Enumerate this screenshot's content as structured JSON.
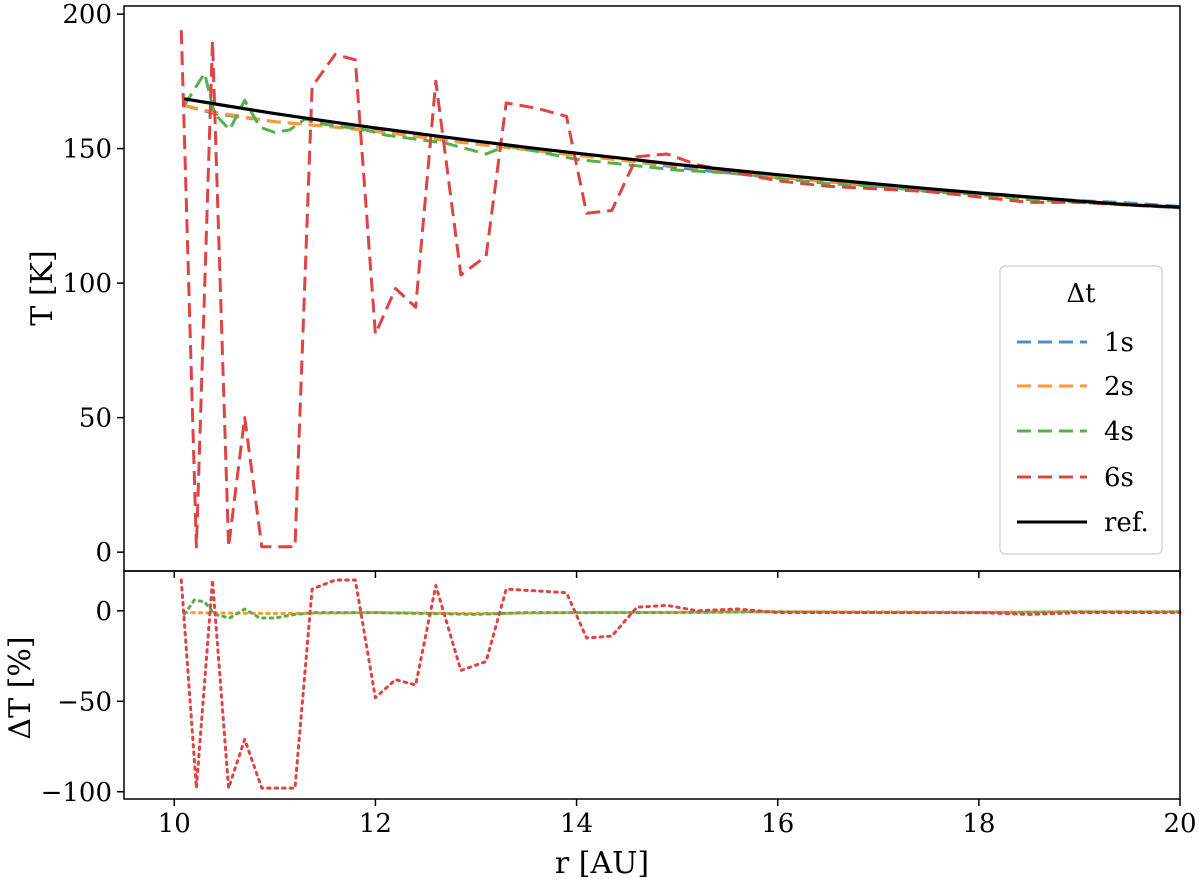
{
  "chart_data": [
    {
      "type": "line",
      "xlim": [
        9.5,
        20
      ],
      "ylim": [
        -7,
        203
      ],
      "xticks": [
        10,
        12,
        14,
        16,
        18,
        20
      ],
      "yticks": [
        0,
        50,
        100,
        150,
        200
      ],
      "xlabel": "",
      "ylabel": "T [K]",
      "grid": false,
      "legend": {
        "title": "Δt",
        "placement": "center-right",
        "entries": [
          "1s",
          "2s",
          "4s",
          "6s",
          "ref."
        ]
      },
      "series": [
        {
          "name": "1s",
          "color": "#4c8fcc",
          "style": "dashed",
          "x": [
            10.1,
            10.4,
            11.0,
            11.6,
            12.2,
            12.8,
            13.4,
            14.0,
            14.6,
            15.2,
            15.8,
            16.4,
            17.0,
            17.6,
            18.2,
            18.8,
            19.4,
            20.0
          ],
          "y": [
            166,
            163,
            160,
            158,
            156,
            153,
            150,
            148,
            145,
            142,
            140,
            138,
            136,
            134,
            133,
            131,
            130,
            128.5
          ]
        },
        {
          "name": "2s",
          "color": "#ff9933",
          "style": "dashed",
          "x": [
            10.1,
            10.4,
            11.0,
            11.6,
            12.2,
            12.8,
            13.4,
            14.0,
            14.6,
            15.2,
            15.8,
            16.4,
            17.0,
            17.6,
            18.2,
            18.8,
            19.4,
            20.0
          ],
          "y": [
            166,
            163.5,
            160,
            158,
            155.5,
            152.5,
            150,
            147.5,
            145,
            143,
            140.5,
            138,
            136.5,
            134.5,
            132.5,
            131,
            129.5,
            128
          ]
        },
        {
          "name": "4s",
          "color": "#55b04c",
          "style": "dashed",
          "x": [
            10.1,
            10.2,
            10.3,
            10.4,
            10.55,
            10.7,
            10.85,
            11.0,
            11.15,
            11.3,
            11.5,
            11.7,
            11.9,
            12.1,
            12.3,
            12.5,
            12.7,
            12.9,
            13.1,
            13.3,
            13.6,
            14.0,
            14.5,
            15.0,
            15.5,
            16.0,
            16.5,
            17.0,
            17.5,
            18.0,
            18.5,
            19.0,
            19.5,
            20.0
          ],
          "y": [
            166,
            172,
            178,
            163,
            157,
            168,
            158,
            156,
            157,
            161,
            159,
            158,
            157,
            155,
            154,
            153,
            152,
            150,
            148,
            151,
            149,
            146,
            144,
            142,
            141,
            139,
            137,
            136,
            134,
            133,
            131,
            130,
            129,
            128
          ]
        },
        {
          "name": "6s",
          "color": "#dd4444",
          "style": "dashed",
          "x": [
            10.07,
            10.22,
            10.38,
            10.54,
            10.7,
            10.87,
            11.03,
            11.2,
            11.37,
            11.6,
            11.8,
            12.0,
            12.2,
            12.4,
            12.6,
            12.85,
            13.1,
            13.3,
            13.6,
            13.9,
            14.1,
            14.35,
            14.6,
            14.9,
            15.2,
            15.6,
            16.0,
            16.5,
            17.0,
            17.5,
            18.0,
            18.5,
            19.0,
            19.5,
            20.0
          ],
          "y": [
            194,
            2,
            190,
            2,
            50,
            2,
            2,
            2,
            173,
            185,
            183,
            81,
            98,
            91,
            175,
            103,
            110,
            167,
            165,
            162,
            126,
            127,
            147,
            148,
            144,
            141,
            138,
            136,
            135,
            134,
            132,
            130,
            130,
            129,
            128
          ]
        },
        {
          "name": "ref.",
          "color": "#000000",
          "style": "solid",
          "x": [
            10.1,
            10.5,
            11.0,
            11.5,
            12.0,
            12.5,
            13.0,
            13.5,
            14.0,
            14.5,
            15.0,
            15.5,
            16.0,
            16.5,
            17.0,
            17.5,
            18.0,
            18.5,
            19.0,
            19.5,
            20.0
          ],
          "y": [
            168.5,
            166,
            163,
            160.3,
            157.7,
            155.2,
            152.8,
            150.5,
            148.3,
            146.2,
            144.1,
            142.2,
            140.3,
            138.5,
            136.8,
            135.1,
            133.5,
            132,
            130.5,
            129.1,
            128.2
          ]
        }
      ]
    },
    {
      "type": "line",
      "xlim": [
        9.5,
        20
      ],
      "ylim": [
        -104,
        22
      ],
      "xticks": [
        10,
        12,
        14,
        16,
        18,
        20
      ],
      "yticks": [
        0,
        -50,
        -100
      ],
      "xlabel": "r [AU]",
      "ylabel": "ΔT [%]",
      "grid": false,
      "series": [
        {
          "color": "#ff9933",
          "style": "dotted",
          "x": [
            10.1,
            11.0,
            12.0,
            13.0,
            14.0,
            15.0,
            16.0,
            17.0,
            18.0,
            19.0,
            20.0
          ],
          "y": [
            -1,
            -1.5,
            -1,
            -1.5,
            -1,
            -0.8,
            -0.5,
            -0.6,
            -0.8,
            -0.5,
            -0.5
          ]
        },
        {
          "color": "#55b04c",
          "style": "dotted",
          "x": [
            10.1,
            10.2,
            10.3,
            10.4,
            10.55,
            10.7,
            10.85,
            11.0,
            11.2,
            11.4,
            11.7,
            12.0,
            12.5,
            13.0,
            13.5,
            14.0,
            15.0,
            16.0,
            17.0,
            18.0,
            19.0,
            20.0
          ],
          "y": [
            -2,
            6,
            5,
            -2,
            -4,
            1,
            -4,
            -4,
            -2,
            -1,
            -1,
            -1,
            -1.5,
            -2,
            -1,
            -1,
            -1,
            -0.5,
            -1,
            -1,
            -0.5,
            -0.5
          ]
        },
        {
          "color": "#dd4444",
          "style": "dotted",
          "x": [
            10.07,
            10.22,
            10.38,
            10.54,
            10.7,
            10.87,
            11.03,
            11.2,
            11.37,
            11.6,
            11.8,
            12.0,
            12.2,
            12.4,
            12.6,
            12.85,
            13.1,
            13.3,
            13.6,
            13.9,
            14.1,
            14.35,
            14.6,
            14.9,
            15.2,
            15.6,
            16.0,
            16.5,
            17.0,
            17.5,
            18.0,
            18.5,
            19.0,
            19.5,
            20.0
          ],
          "y": [
            17,
            -98,
            17,
            -98,
            -71,
            -98,
            -98,
            -98,
            12,
            17,
            17,
            -48,
            -38,
            -41,
            14,
            -33,
            -28,
            12,
            11,
            10,
            -15,
            -14,
            2,
            3,
            0,
            1,
            -1,
            -1,
            -1,
            -1,
            -1,
            -2,
            -1,
            -1,
            -1
          ]
        }
      ]
    }
  ]
}
